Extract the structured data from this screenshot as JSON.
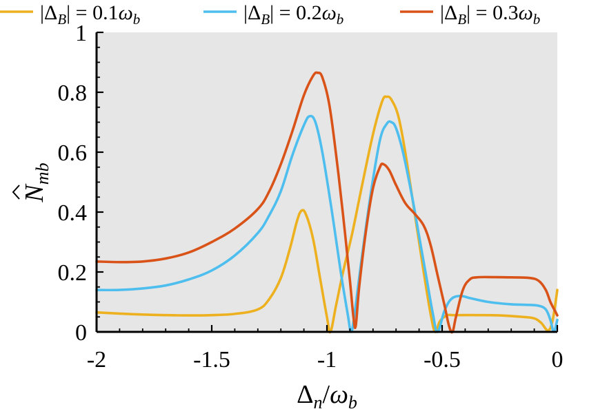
{
  "chart_data": {
    "type": "line",
    "xlabel": {
      "main": "Δ",
      "main_sub": "n",
      "sep": "/",
      "den": "ω",
      "den_sub": "b"
    },
    "ylabel": {
      "main": "N",
      "sub": "mb"
    },
    "xlim": [
      -2,
      0
    ],
    "ylim": [
      0,
      1
    ],
    "xticks": [
      -2,
      -1.5,
      -1,
      -0.5,
      0
    ],
    "xtick_labels": [
      "-2",
      "-1.5",
      "-1",
      "-0.5",
      "0"
    ],
    "yticks": [
      0,
      0.2,
      0.4,
      0.6,
      0.8,
      1
    ],
    "ytick_labels": [
      "0",
      "0.2",
      "0.4",
      "0.6",
      "0.8",
      "1"
    ],
    "grid": false,
    "background": "#e6e6e6",
    "legend_position": "top",
    "series": [
      {
        "name": "|Δ_B| = 0.1ω_b",
        "legend": {
          "prefix": "|Δ",
          "sub": "B",
          "eq": "| = 0.1ω",
          "tail_sub": "b"
        },
        "color": "#EDB120",
        "points": [
          [
            -2.0,
            0.065
          ],
          [
            -1.9,
            0.061
          ],
          [
            -1.8,
            0.058
          ],
          [
            -1.7,
            0.056
          ],
          [
            -1.6,
            0.055
          ],
          [
            -1.5,
            0.056
          ],
          [
            -1.4,
            0.06
          ],
          [
            -1.3,
            0.075
          ],
          [
            -1.25,
            0.11
          ],
          [
            -1.2,
            0.18
          ],
          [
            -1.16,
            0.28
          ],
          [
            -1.13,
            0.37
          ],
          [
            -1.11,
            0.405
          ],
          [
            -1.09,
            0.39
          ],
          [
            -1.06,
            0.31
          ],
          [
            -1.03,
            0.18
          ],
          [
            -1.0,
            0.05
          ],
          [
            -0.985,
            0.0
          ],
          [
            -0.96,
            0.09
          ],
          [
            -0.93,
            0.2
          ],
          [
            -0.89,
            0.33
          ],
          [
            -0.85,
            0.48
          ],
          [
            -0.8,
            0.66
          ],
          [
            -0.76,
            0.77
          ],
          [
            -0.74,
            0.785
          ],
          [
            -0.72,
            0.775
          ],
          [
            -0.69,
            0.72
          ],
          [
            -0.66,
            0.6
          ],
          [
            -0.62,
            0.4
          ],
          [
            -0.58,
            0.2
          ],
          [
            -0.55,
            0.06
          ],
          [
            -0.53,
            0.0
          ],
          [
            -0.51,
            0.035
          ],
          [
            -0.48,
            0.055
          ],
          [
            -0.45,
            0.056
          ],
          [
            -0.35,
            0.056
          ],
          [
            -0.25,
            0.055
          ],
          [
            -0.15,
            0.05
          ],
          [
            -0.1,
            0.045
          ],
          [
            -0.07,
            0.03
          ],
          [
            -0.04,
            0.005
          ],
          [
            -0.02,
            0.04
          ],
          [
            0.0,
            0.14
          ]
        ]
      },
      {
        "name": "|Δ_B| = 0.2ω_b",
        "legend": {
          "prefix": "|Δ",
          "sub": "B",
          "eq": "| = 0.2ω",
          "tail_sub": "b"
        },
        "color": "#4DBEEE",
        "points": [
          [
            -2.0,
            0.14
          ],
          [
            -1.9,
            0.14
          ],
          [
            -1.8,
            0.145
          ],
          [
            -1.7,
            0.155
          ],
          [
            -1.6,
            0.175
          ],
          [
            -1.5,
            0.205
          ],
          [
            -1.4,
            0.255
          ],
          [
            -1.3,
            0.33
          ],
          [
            -1.25,
            0.39
          ],
          [
            -1.2,
            0.47
          ],
          [
            -1.15,
            0.59
          ],
          [
            -1.1,
            0.69
          ],
          [
            -1.075,
            0.72
          ],
          [
            -1.05,
            0.7
          ],
          [
            -1.02,
            0.6
          ],
          [
            -0.98,
            0.41
          ],
          [
            -0.94,
            0.2
          ],
          [
            -0.91,
            0.06
          ],
          [
            -0.895,
            0.0
          ],
          [
            -0.88,
            0.06
          ],
          [
            -0.85,
            0.24
          ],
          [
            -0.81,
            0.46
          ],
          [
            -0.77,
            0.64
          ],
          [
            -0.74,
            0.695
          ],
          [
            -0.72,
            0.7
          ],
          [
            -0.7,
            0.68
          ],
          [
            -0.67,
            0.6
          ],
          [
            -0.63,
            0.45
          ],
          [
            -0.6,
            0.32
          ],
          [
            -0.57,
            0.19
          ],
          [
            -0.54,
            0.06
          ],
          [
            -0.52,
            0.0
          ],
          [
            -0.49,
            0.07
          ],
          [
            -0.46,
            0.11
          ],
          [
            -0.42,
            0.12
          ],
          [
            -0.38,
            0.113
          ],
          [
            -0.3,
            0.1
          ],
          [
            -0.2,
            0.092
          ],
          [
            -0.12,
            0.09
          ],
          [
            -0.08,
            0.087
          ],
          [
            -0.05,
            0.075
          ],
          [
            -0.03,
            0.04
          ],
          [
            -0.015,
            0.0
          ],
          [
            0.0,
            0.04
          ]
        ]
      },
      {
        "name": "|Δ_B| = 0.3ω_b",
        "legend": {
          "prefix": "|Δ",
          "sub": "B",
          "eq": "| = 0.3ω",
          "tail_sub": "b"
        },
        "color": "#D95319",
        "points": [
          [
            -2.0,
            0.235
          ],
          [
            -1.9,
            0.233
          ],
          [
            -1.8,
            0.235
          ],
          [
            -1.7,
            0.245
          ],
          [
            -1.6,
            0.265
          ],
          [
            -1.5,
            0.3
          ],
          [
            -1.4,
            0.345
          ],
          [
            -1.3,
            0.41
          ],
          [
            -1.25,
            0.47
          ],
          [
            -1.2,
            0.56
          ],
          [
            -1.15,
            0.67
          ],
          [
            -1.1,
            0.79
          ],
          [
            -1.06,
            0.855
          ],
          [
            -1.04,
            0.865
          ],
          [
            -1.02,
            0.85
          ],
          [
            -0.99,
            0.76
          ],
          [
            -0.96,
            0.59
          ],
          [
            -0.93,
            0.39
          ],
          [
            -0.9,
            0.17
          ],
          [
            -0.885,
            0.05
          ],
          [
            -0.875,
            0.02
          ],
          [
            -0.86,
            0.15
          ],
          [
            -0.83,
            0.34
          ],
          [
            -0.8,
            0.48
          ],
          [
            -0.77,
            0.55
          ],
          [
            -0.755,
            0.56
          ],
          [
            -0.73,
            0.54
          ],
          [
            -0.7,
            0.49
          ],
          [
            -0.66,
            0.43
          ],
          [
            -0.62,
            0.395
          ],
          [
            -0.58,
            0.355
          ],
          [
            -0.55,
            0.29
          ],
          [
            -0.52,
            0.19
          ],
          [
            -0.49,
            0.09
          ],
          [
            -0.47,
            0.02
          ],
          [
            -0.455,
            0.0
          ],
          [
            -0.44,
            0.05
          ],
          [
            -0.41,
            0.14
          ],
          [
            -0.38,
            0.175
          ],
          [
            -0.35,
            0.182
          ],
          [
            -0.3,
            0.183
          ],
          [
            -0.2,
            0.182
          ],
          [
            -0.12,
            0.18
          ],
          [
            -0.08,
            0.17
          ],
          [
            -0.05,
            0.14
          ],
          [
            -0.03,
            0.1
          ],
          [
            -0.01,
            0.07
          ],
          [
            0.0,
            0.055
          ]
        ]
      }
    ]
  }
}
